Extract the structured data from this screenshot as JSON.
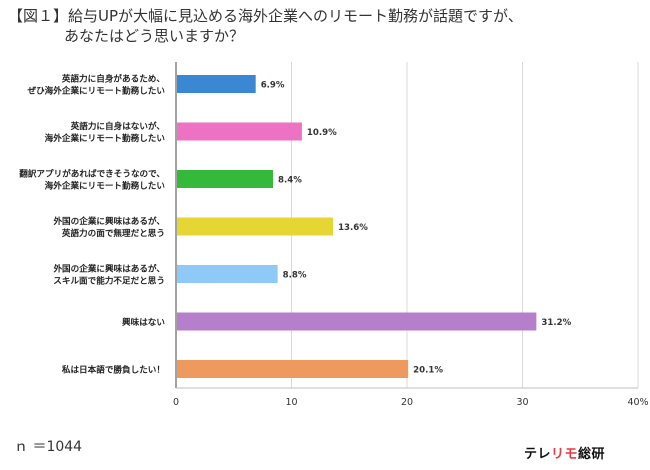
{
  "title": {
    "line1": "【図１】給与UPが大幅に見込める海外企業へのリモート勤務が話題ですが、",
    "line2": "あなたはどう思いますか？"
  },
  "footnote": "ｎ ＝1044",
  "brand": {
    "pre": "テレ",
    "accent": "リモ",
    "post": "総研",
    "accent_color": "#e8383d"
  },
  "chart_data": {
    "type": "bar",
    "orientation": "horizontal",
    "categories": [
      [
        "英語力に自身があるため、",
        "ぜひ海外企業にリモート勤務したい"
      ],
      [
        "英語力に自身はないが、",
        "海外企業にリモート勤務したい"
      ],
      [
        "翻訳アプリがあればできそうなので、",
        "海外企業にリモート勤務したい"
      ],
      [
        "外国の企業に興味はあるが、",
        "英語力の面で無理だと思う"
      ],
      [
        "外国の企業に興味はあるが、",
        "スキル面で能力不足だと思う"
      ],
      [
        "興味はない"
      ],
      [
        "私は日本語で勝負したい！"
      ]
    ],
    "values": [
      6.9,
      10.9,
      8.4,
      13.6,
      8.8,
      31.2,
      20.1
    ],
    "value_labels": [
      "6.9%",
      "10.9%",
      "8.4%",
      "13.6%",
      "8.8%",
      "31.2%",
      "20.1%"
    ],
    "colors": [
      "#3a87d4",
      "#ee72c3",
      "#34b93b",
      "#e6d634",
      "#8ec9f8",
      "#b57fcb",
      "#ee9a5f"
    ],
    "xlim": [
      0,
      40
    ],
    "xticks": [
      "0",
      "10",
      "20",
      "30",
      "40%"
    ],
    "xtick_values": [
      0,
      10,
      20,
      30,
      40
    ],
    "grid": true,
    "legend": "none"
  }
}
